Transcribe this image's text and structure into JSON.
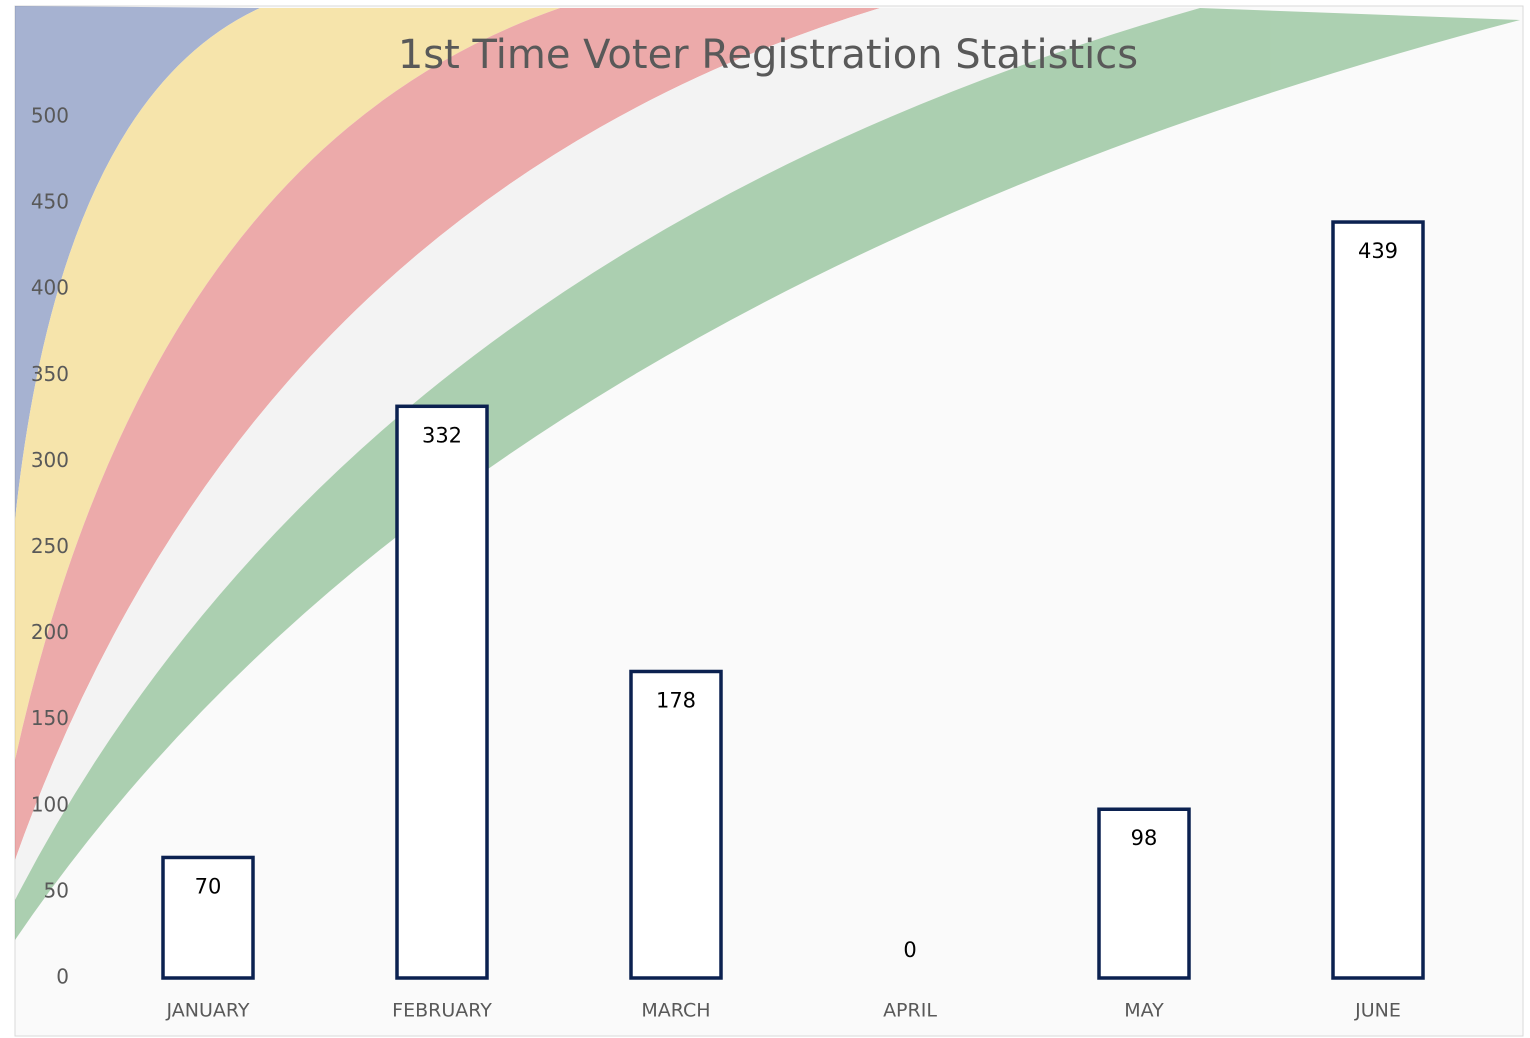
{
  "chart_data": {
    "type": "bar",
    "title": "1st Time Voter Registration Statistics",
    "categories": [
      "JANUARY",
      "FEBRUARY",
      "MARCH",
      "APRIL",
      "MAY",
      "JUNE"
    ],
    "values": [
      70,
      332,
      178,
      0,
      98,
      439
    ],
    "color": "#0b2150",
    "ylim": [
      0,
      500
    ],
    "yticks": [
      0,
      50,
      100,
      150,
      200,
      250,
      300,
      350,
      400,
      450,
      500
    ],
    "grid": false
  }
}
